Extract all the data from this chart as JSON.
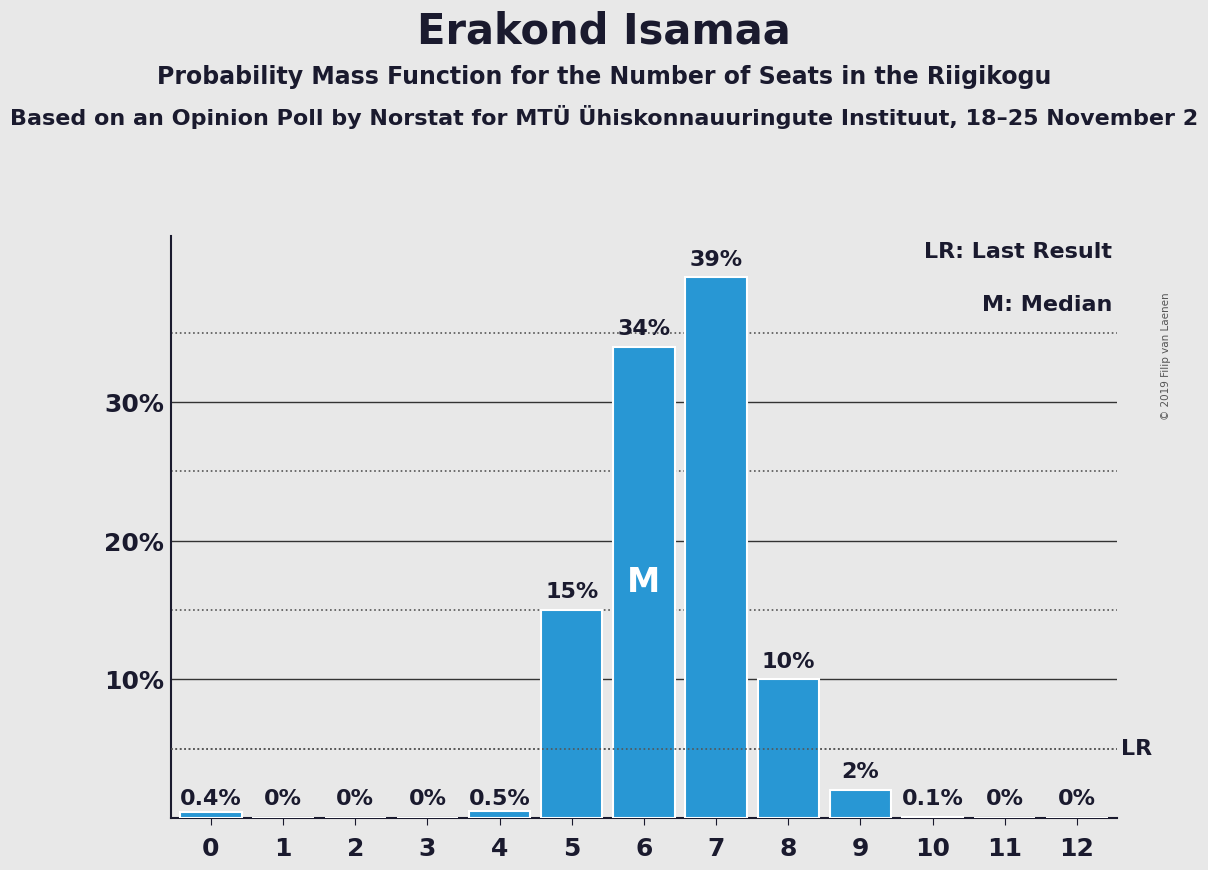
{
  "title": "Erakond Isamaa",
  "subtitle": "Probability Mass Function for the Number of Seats in the Riigikogu",
  "sub_subtitle": "Based on an Opinion Poll by Norstat for MTÜ Ühiskonnauuringute Instituut, 18–25 November 2",
  "copyright": "© 2019 Filip van Laenen",
  "seats": [
    0,
    1,
    2,
    3,
    4,
    5,
    6,
    7,
    8,
    9,
    10,
    11,
    12
  ],
  "probabilities": [
    0.4,
    0,
    0,
    0,
    0.5,
    15,
    34,
    39,
    10,
    2,
    0.1,
    0,
    0
  ],
  "bar_color": "#2897D4",
  "bar_edge_color": "white",
  "background_color": "#e8e8e8",
  "median_seat": 6,
  "lr_value": 5.0,
  "ylim": [
    0,
    42
  ],
  "yticks": [
    10,
    20,
    30
  ],
  "ytick_labels": [
    "10%",
    "20%",
    "30%"
  ],
  "solid_lines": [
    10,
    20,
    30
  ],
  "dotted_lines": [
    5,
    15,
    25,
    35
  ],
  "legend_lr": "LR: Last Result",
  "legend_m": "M: Median",
  "title_fontsize": 30,
  "subtitle_fontsize": 17,
  "sub_subtitle_fontsize": 16,
  "bar_label_fontsize": 16,
  "median_label_fontsize": 24,
  "axis_label_fontsize": 18,
  "legend_fontsize": 16,
  "text_color": "#1a1a2e",
  "solid_line_color": "#333333",
  "dotted_line_color": "#555555"
}
